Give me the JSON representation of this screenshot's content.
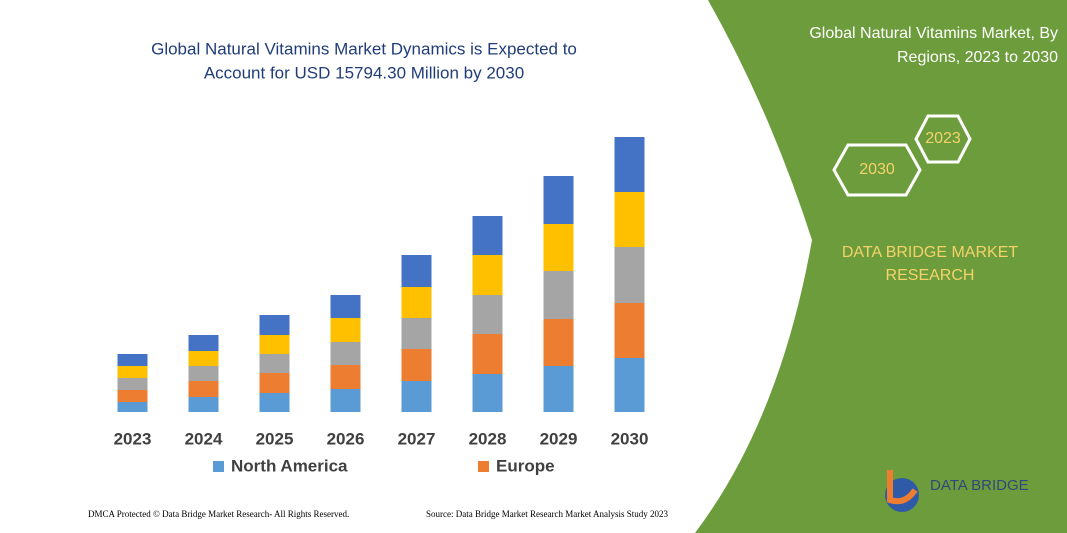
{
  "chart_data": {
    "type": "stacked-bar",
    "title": [
      "Global Natural Vitamins Market Dynamics is Expected to",
      "Account for USD 15794.30 Million by 2030"
    ],
    "categories": [
      "2023",
      "2024",
      "2025",
      "2026",
      "2027",
      "2028",
      "2029",
      "2030"
    ],
    "series": [
      {
        "name": "North America",
        "color": "#5b9bd5",
        "values": [
          10,
          15,
          19,
          23,
          31,
          38,
          46,
          54
        ]
      },
      {
        "name": "Europe",
        "color": "#ed7d31",
        "values": [
          12,
          16,
          20,
          24,
          32,
          40,
          47,
          55
        ]
      },
      {
        "color": "#a5a5a5",
        "values": [
          12,
          15,
          19,
          23,
          31,
          39,
          48,
          56
        ]
      },
      {
        "color": "#ffc000",
        "values": [
          12,
          15,
          19,
          24,
          31,
          40,
          47,
          55
        ]
      },
      {
        "color": "#4472c4",
        "values": [
          12,
          16,
          20,
          23,
          32,
          39,
          48,
          55
        ]
      }
    ],
    "ylim": [
      0,
      300
    ]
  },
  "panel": {
    "title": [
      "Global Natural Vitamins Market, By",
      "Regions, 2023 to 2030"
    ],
    "hex_years": [
      "2023",
      "2030"
    ],
    "brand": [
      "DATA BRIDGE MARKET",
      "RESEARCH"
    ],
    "logo": "DATA BRIDGE"
  },
  "footer": {
    "left": "DMCA Protected © Data Bridge Market Research-  All Rights Reserved.",
    "right": "Source: Data Bridge Market Research  Market Analysis Study 2023"
  }
}
